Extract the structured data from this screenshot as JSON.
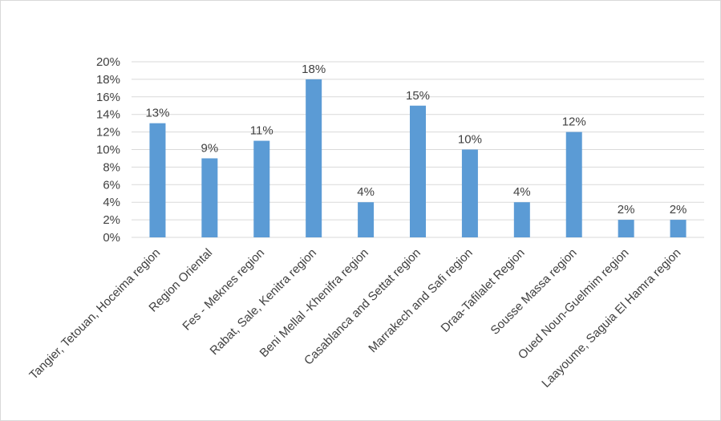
{
  "chart_data": {
    "type": "bar",
    "title": "",
    "xlabel": "",
    "ylabel": "",
    "ylim": [
      0,
      20
    ],
    "y_tick_step": 2,
    "y_tick_format": "percent",
    "grid": true,
    "legend": "none",
    "bar_color": "#5b9bd5",
    "categories": [
      "Tangier, Tetouan, Hoceima region",
      "Region Oriental",
      "Fes - Meknes region",
      "Rabat, Sale, Kenitra region",
      "Beni Mellal -Khenifra region",
      "Casablanca and Settat region",
      "Marrakech and Safi region",
      "Draa-Tafilalet Region",
      "Sousse Massa region",
      "Oued Noun-Guelmim region",
      "Laayoume, Saguia El Hamra region"
    ],
    "values": [
      13,
      9,
      11,
      18,
      4,
      15,
      10,
      4,
      12,
      2,
      2
    ],
    "data_labels": [
      "13%",
      "9%",
      "11%",
      "18%",
      "4%",
      "15%",
      "10%",
      "4%",
      "12%",
      "2%",
      "2%"
    ]
  }
}
